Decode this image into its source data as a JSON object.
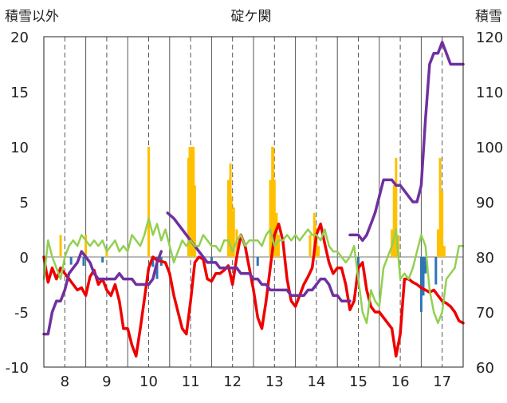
{
  "colors": {
    "temperature": "#ee0000",
    "snow_depth": "#7030a0",
    "humidity": "#92d050",
    "precip": "#ffc000",
    "negative_bar": "#2e75b6",
    "grid": "#555555",
    "axis": "#222222"
  },
  "chart_data": {
    "type": "line",
    "title": "碇ケ関",
    "ylabel_left": "積雪以外",
    "ylabel_right": "積雪",
    "ylim_left": [
      -10,
      20
    ],
    "ylim_right": [
      60,
      120
    ],
    "xlim": [
      7.5,
      17.5
    ],
    "yticks_left": [
      "20",
      "15",
      "10",
      "5",
      "0",
      "-5",
      "-10"
    ],
    "yticks_right": [
      "120",
      "110",
      "100",
      "90",
      "80",
      "70",
      "60"
    ],
    "x_ticks": [
      "8",
      "9",
      "10",
      "11",
      "12",
      "13",
      "14",
      "15",
      "16",
      "17"
    ],
    "grid": "vertical dashed at day centers, solid at day boundaries",
    "legend": "none",
    "series": [
      {
        "key": "temperature",
        "axis": "left",
        "x": [
          7.5,
          7.6,
          7.7,
          7.8,
          7.9,
          8.0,
          8.1,
          8.2,
          8.3,
          8.4,
          8.5,
          8.6,
          8.7,
          8.8,
          8.9,
          9.0,
          9.1,
          9.2,
          9.3,
          9.4,
          9.5,
          9.6,
          9.7,
          9.8,
          9.9,
          10.0,
          10.1,
          10.2,
          10.3,
          10.4,
          10.5,
          10.6,
          10.7,
          10.8,
          10.9,
          11.0,
          11.1,
          11.2,
          11.3,
          11.4,
          11.5,
          11.6,
          11.7,
          11.8,
          11.9,
          12.0,
          12.1,
          12.2,
          12.3,
          12.4,
          12.5,
          12.6,
          12.7,
          12.8,
          12.9,
          13.0,
          13.1,
          13.2,
          13.3,
          13.4,
          13.5,
          13.6,
          13.7,
          13.8,
          13.9,
          14.0,
          14.1,
          14.2,
          14.3,
          14.4,
          14.5,
          14.6,
          14.7,
          14.8,
          14.9,
          15.0,
          15.1,
          15.2,
          15.3,
          15.4,
          15.5,
          15.6,
          15.7,
          15.8,
          15.9,
          16.0,
          16.1,
          16.2,
          16.3,
          16.4,
          16.5,
          16.6,
          16.7,
          16.8,
          16.9,
          17.0,
          17.1,
          17.2,
          17.3,
          17.4,
          17.5
        ],
        "values": [
          0.0,
          -2.3,
          -1.0,
          -2.0,
          -1.0,
          -1.5,
          -2.0,
          -2.5,
          -3.0,
          -2.8,
          -3.5,
          -1.8,
          -1.2,
          -2.5,
          -2.0,
          -3.0,
          -3.5,
          -2.5,
          -4.0,
          -6.5,
          -6.5,
          -8.0,
          -9.0,
          -6.5,
          -3.8,
          -1.0,
          0.0,
          -0.3,
          -0.4,
          -0.5,
          -1.5,
          -3.5,
          -5.0,
          -6.5,
          -7.0,
          -4.0,
          -0.5,
          0.0,
          -0.2,
          -2.0,
          -2.2,
          -1.5,
          -1.5,
          -1.2,
          -0.8,
          -2.5,
          0.0,
          2.0,
          1.0,
          -1.0,
          -3.0,
          -5.5,
          -6.5,
          -4.0,
          -1.0,
          2.0,
          3.0,
          1.5,
          -2.0,
          -4.0,
          -4.5,
          -3.5,
          -2.5,
          -1.8,
          -1.0,
          2.0,
          3.0,
          1.2,
          -0.5,
          -1.5,
          -1.0,
          -1.0,
          -2.5,
          -4.8,
          -4.0,
          -1.0,
          -0.5,
          -3.0,
          -4.5,
          -5.0,
          -5.0,
          -5.5,
          -6.0,
          -6.5,
          -9.0,
          -7.0,
          -2.0,
          -2.0,
          -2.3,
          -2.5,
          -2.8,
          -3.0,
          -3.2,
          -3.0,
          -3.5,
          -4.0,
          -4.2,
          -4.5,
          -5.0,
          -5.8,
          -6.0
        ]
      },
      {
        "key": "snow_depth",
        "axis": "right",
        "x": [
          7.5,
          7.6,
          7.7,
          7.8,
          7.9,
          8.0,
          8.1,
          8.2,
          8.3,
          8.4,
          8.5,
          8.6,
          8.7,
          8.8,
          8.9,
          9.0,
          9.1,
          9.2,
          9.3,
          9.4,
          9.5,
          9.6,
          9.7,
          9.8,
          9.9,
          10.0,
          10.1,
          10.2,
          10.3
        ],
        "values": [
          66,
          66,
          70,
          72,
          72,
          74,
          77,
          78,
          79,
          81,
          80,
          79,
          77,
          76,
          76,
          76,
          76,
          76,
          77,
          76,
          76,
          76,
          75,
          75,
          75,
          75,
          76,
          79,
          81
        ]
      },
      {
        "key": "snow_depth",
        "axis": "right",
        "x": [
          10.45,
          10.6,
          10.7,
          10.8,
          10.9,
          11.0,
          11.1,
          11.2,
          11.3,
          11.4,
          11.5,
          11.6,
          11.7,
          11.8,
          11.9,
          12.0,
          12.1,
          12.2,
          12.3,
          12.4,
          12.5,
          12.6,
          12.7,
          12.8,
          12.9,
          13.0,
          13.1,
          13.2,
          13.3,
          13.4,
          13.5,
          13.6,
          13.7,
          13.8,
          13.9,
          14.0,
          14.1,
          14.2,
          14.3,
          14.4,
          14.5,
          14.6,
          14.7,
          14.8
        ],
        "values": [
          88,
          87,
          86,
          85,
          84,
          83,
          82,
          81,
          80,
          79,
          79,
          79,
          78,
          78,
          78,
          78,
          78,
          77,
          77,
          77,
          76,
          76,
          75,
          75,
          74,
          74,
          74,
          74,
          74,
          73,
          73,
          73,
          73,
          74,
          74,
          75,
          76,
          76,
          75,
          73,
          73,
          72,
          72,
          72
        ]
      },
      {
        "key": "snow_depth",
        "axis": "right",
        "x": [
          14.8,
          14.9,
          15.0,
          15.1,
          15.2,
          15.3,
          15.4,
          15.5,
          15.6,
          15.7,
          15.8,
          15.9,
          16.0,
          16.1,
          16.2,
          16.3,
          16.4,
          16.5,
          16.6,
          16.7,
          16.8,
          16.9,
          17.0,
          17.1,
          17.2,
          17.3,
          17.4,
          17.5
        ],
        "values": [
          84,
          84,
          84,
          83,
          84,
          86,
          88,
          91,
          94,
          94,
          94,
          93,
          93,
          92,
          91,
          90,
          90,
          93,
          105,
          115,
          117,
          117,
          119,
          117,
          115,
          115,
          115,
          115
        ]
      },
      {
        "key": "humidity",
        "axis": "left",
        "x": [
          7.5,
          7.6,
          7.7,
          7.8,
          7.9,
          8.0,
          8.1,
          8.2,
          8.3,
          8.4,
          8.5,
          8.6,
          8.7,
          8.8,
          8.9,
          9.0,
          9.1,
          9.2,
          9.3,
          9.4,
          9.5,
          9.6,
          9.7,
          9.8,
          9.9,
          10.0,
          10.1,
          10.2,
          10.3,
          10.4,
          10.5,
          10.6,
          10.7,
          10.8,
          10.9,
          11.0,
          11.1,
          11.2,
          11.3,
          11.4,
          11.5,
          11.6,
          11.7,
          11.8,
          11.9,
          12.0,
          12.1,
          12.2,
          12.3,
          12.4,
          12.5,
          12.6,
          12.7,
          12.8,
          12.9,
          13.0,
          13.1,
          13.2,
          13.3,
          13.4,
          13.5,
          13.6,
          13.7,
          13.8,
          13.9,
          14.0,
          14.1,
          14.2,
          14.3,
          14.4,
          14.5,
          14.6,
          14.7,
          14.8,
          14.9,
          15.0,
          15.1,
          15.2,
          15.3,
          15.4,
          15.5,
          15.6,
          15.7,
          15.8,
          15.9,
          16.0,
          16.1,
          16.2,
          16.3,
          16.4,
          16.5,
          16.6,
          16.7,
          16.8,
          16.9,
          17.0,
          17.1,
          17.2,
          17.3,
          17.4,
          17.5
        ],
        "values": [
          -2.0,
          1.5,
          0.0,
          -1.0,
          -2.0,
          0.0,
          1.0,
          1.5,
          1.0,
          2.0,
          1.5,
          1.0,
          1.5,
          1.0,
          1.5,
          0.5,
          1.0,
          1.5,
          0.5,
          1.0,
          0.5,
          2.0,
          1.5,
          1.0,
          2.0,
          3.5,
          2.0,
          3.0,
          1.5,
          2.5,
          1.0,
          -0.5,
          0.5,
          1.5,
          1.0,
          1.5,
          1.0,
          1.0,
          2.0,
          1.5,
          1.0,
          1.0,
          0.5,
          1.5,
          1.5,
          0.5,
          1.5,
          2.0,
          1.0,
          1.5,
          1.5,
          1.5,
          1.0,
          2.0,
          2.5,
          1.0,
          1.5,
          1.5,
          2.0,
          1.5,
          2.0,
          1.5,
          2.0,
          2.5,
          2.0,
          2.0,
          1.5,
          2.5,
          1.0,
          0.5,
          0.5,
          0.0,
          -0.5,
          0.0,
          1.0,
          -2.0,
          -5.0,
          -6.0,
          -3.0,
          -4.0,
          -4.5,
          -1.0,
          0.0,
          1.0,
          2.5,
          -2.0,
          -1.5,
          -2.0,
          -1.0,
          0.5,
          2.0,
          1.0,
          -3.0,
          -5.0,
          -6.0,
          -5.0,
          -2.0,
          -1.5,
          -1.0,
          1.0,
          1.0
        ]
      }
    ],
    "bars": {
      "x": [
        7.9,
        8.15,
        8.45,
        8.5,
        8.9,
        9.0,
        10.0,
        10.1,
        10.2,
        10.3,
        10.95,
        10.98,
        11.0,
        11.03,
        11.07,
        11.1,
        11.5,
        11.9,
        11.95,
        11.97,
        12.0,
        12.03,
        12.1,
        12.6,
        12.9,
        12.95,
        12.97,
        13.0,
        13.05,
        13.1,
        13.85,
        13.95,
        13.97,
        14.0,
        14.05,
        15.0,
        15.8,
        15.85,
        15.9,
        15.95,
        16.5,
        16.55,
        16.6,
        16.85,
        16.9,
        16.95,
        17.0,
        17.05
      ],
      "values": [
        2.0,
        -0.7,
        -0.8,
        2.0,
        -0.5,
        0.6,
        10.0,
        -0.9,
        -2.0,
        -0.8,
        9.0,
        10.0,
        10.0,
        10.0,
        10.0,
        6.5,
        -0.6,
        7.0,
        8.5,
        5.5,
        4.0,
        4.5,
        2.5,
        -0.8,
        7.0,
        10.0,
        10.0,
        7.0,
        4.0,
        2.0,
        2.0,
        4.0,
        3.0,
        2.0,
        1.0,
        -2.0,
        2.5,
        6.5,
        9.0,
        2.0,
        -5.0,
        -3.5,
        -1.5,
        -2.5,
        2.5,
        9.0,
        6.0,
        1.0
      ]
    }
  }
}
